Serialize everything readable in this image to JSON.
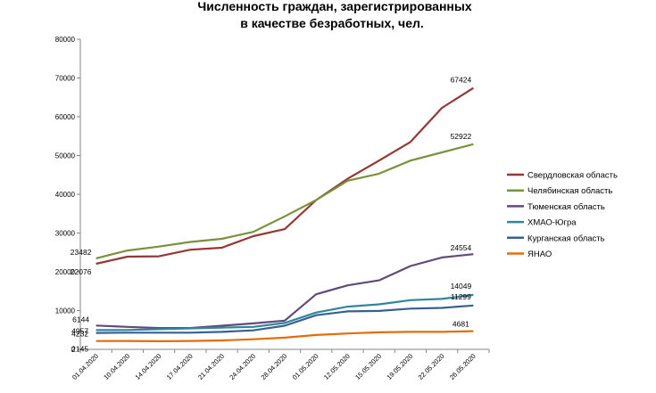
{
  "chart_data": {
    "type": "line",
    "title": [
      "Численность граждан, зарегистрированных",
      "в качестве безработных, чел."
    ],
    "categories": [
      "01.04.2020",
      "10.04.2020",
      "14.04.2020",
      "17.04.2020",
      "21.04.2020",
      "24.04.2020",
      "28.04.2020",
      "01.05.2020",
      "12.05.2020",
      "15.05.2020",
      "19.05.2020",
      "22.05.2020",
      "26.05.2020"
    ],
    "ylim": [
      0,
      80000
    ],
    "yticks": [
      "0",
      "10000",
      "20000",
      "30000",
      "40000",
      "50000",
      "60000",
      "70000",
      "80000"
    ],
    "grid": false,
    "legend_position": "right",
    "series": [
      {
        "name": "Свердловская область",
        "color": "#953735",
        "values": [
          22076,
          23900,
          24000,
          25700,
          26200,
          29200,
          31000,
          38500,
          44000,
          48700,
          53500,
          62300,
          67424
        ],
        "start_label": "22076",
        "end_label": "67424"
      },
      {
        "name": "Челябинская область",
        "color": "#77933C",
        "values": [
          23482,
          25500,
          26500,
          27700,
          28500,
          30300,
          34300,
          38500,
          43500,
          45300,
          48700,
          50800,
          52922
        ],
        "start_label": "23482",
        "end_label": "52922"
      },
      {
        "name": "Тюменская область",
        "color": "#604A7B",
        "values": [
          6144,
          5800,
          5500,
          5500,
          6100,
          6700,
          7400,
          14200,
          16500,
          17800,
          21500,
          23700,
          24554
        ],
        "start_label": "6144",
        "end_label": "24554"
      },
      {
        "name": "ХМАО-Югра",
        "color": "#31859C",
        "values": [
          4957,
          5000,
          5200,
          5400,
          5600,
          5800,
          6800,
          9500,
          11000,
          11600,
          12700,
          13000,
          14049
        ],
        "start_label": "4957",
        "end_label": "14049"
      },
      {
        "name": "Курганская область",
        "color": "#376092",
        "values": [
          4232,
          4300,
          4300,
          4300,
          4500,
          4900,
          6100,
          8800,
          9800,
          9900,
          10500,
          10700,
          11299
        ],
        "start_label": "4232",
        "end_label": "11299"
      },
      {
        "name": "ЯНАО",
        "color": "#E46C0A",
        "values": [
          2145,
          2150,
          2100,
          2150,
          2300,
          2600,
          3000,
          3700,
          4100,
          4400,
          4500,
          4500,
          4681
        ],
        "start_label": "2145",
        "end_label": "4681"
      }
    ]
  }
}
